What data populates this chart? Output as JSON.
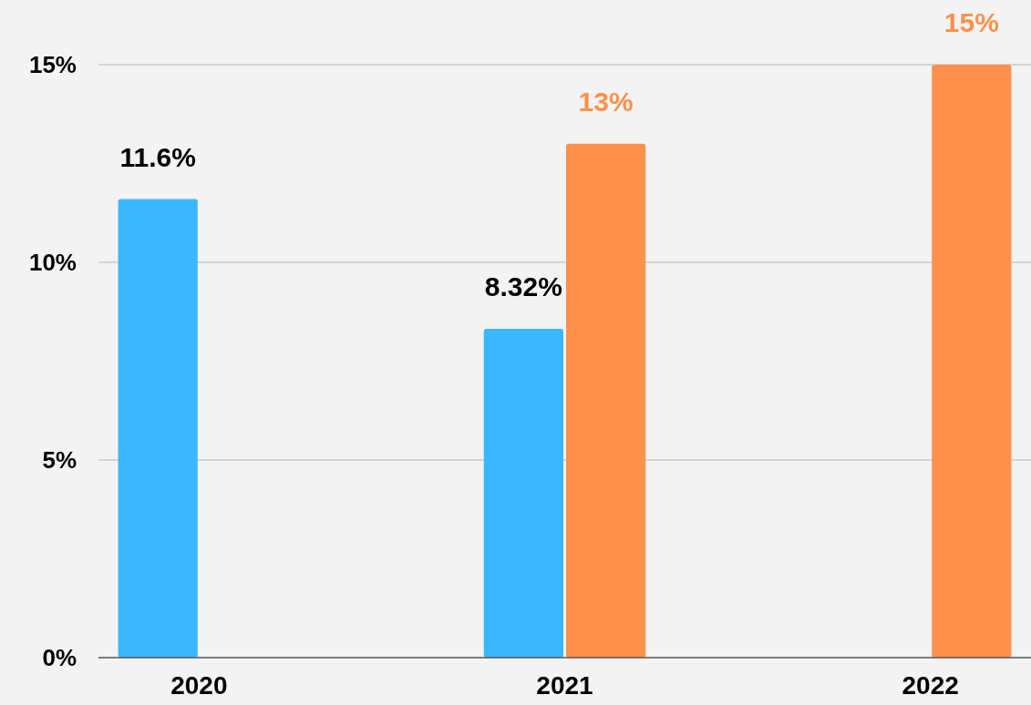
{
  "chart_data": {
    "type": "bar",
    "categories": [
      "2020",
      "2021",
      "2022"
    ],
    "series": [
      {
        "color": "#3bb7ff",
        "values": [
          11.6,
          8.32,
          null
        ],
        "value_labels": [
          "11.6%",
          "8.32%",
          null
        ]
      },
      {
        "color": "#ff914d",
        "values": [
          null,
          13,
          15
        ],
        "value_labels": [
          null,
          "13%",
          "15%"
        ]
      }
    ],
    "ylim": [
      0,
      15
    ],
    "yticks": [
      {
        "value": 0,
        "label": "0%"
      },
      {
        "value": 5,
        "label": "5%"
      },
      {
        "value": 10,
        "label": "10%"
      },
      {
        "value": 15,
        "label": "15%"
      }
    ],
    "grid": "y"
  }
}
